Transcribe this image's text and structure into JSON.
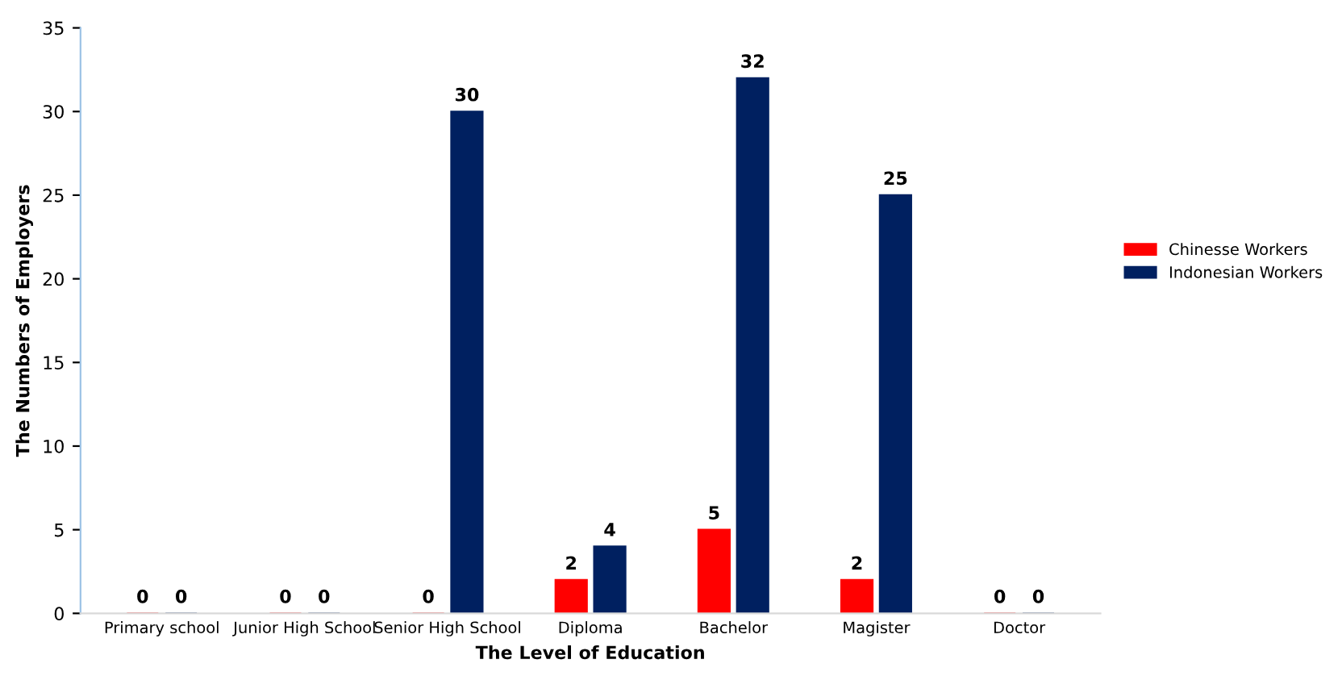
{
  "chart_data": {
    "type": "bar",
    "xlabel": "The Level of Education",
    "ylabel": "The Numbers of Employers",
    "categories": [
      "Primary school",
      "Junior High School",
      "Senior High School",
      "Diploma",
      "Bachelor",
      "Magister",
      "Doctor"
    ],
    "series": [
      {
        "name": "Chinesse Workers",
        "color": "#ff0000",
        "values": [
          0,
          0,
          0,
          2,
          5,
          2,
          0
        ]
      },
      {
        "name": "Indonesian Workers",
        "color": "#002060",
        "values": [
          0,
          0,
          30,
          4,
          32,
          25,
          0
        ]
      }
    ],
    "ylim": [
      0,
      35
    ],
    "yticks": [
      0,
      5,
      10,
      15,
      20,
      25,
      30,
      35
    ],
    "grid": false,
    "legend": "right",
    "data_labels": true
  }
}
